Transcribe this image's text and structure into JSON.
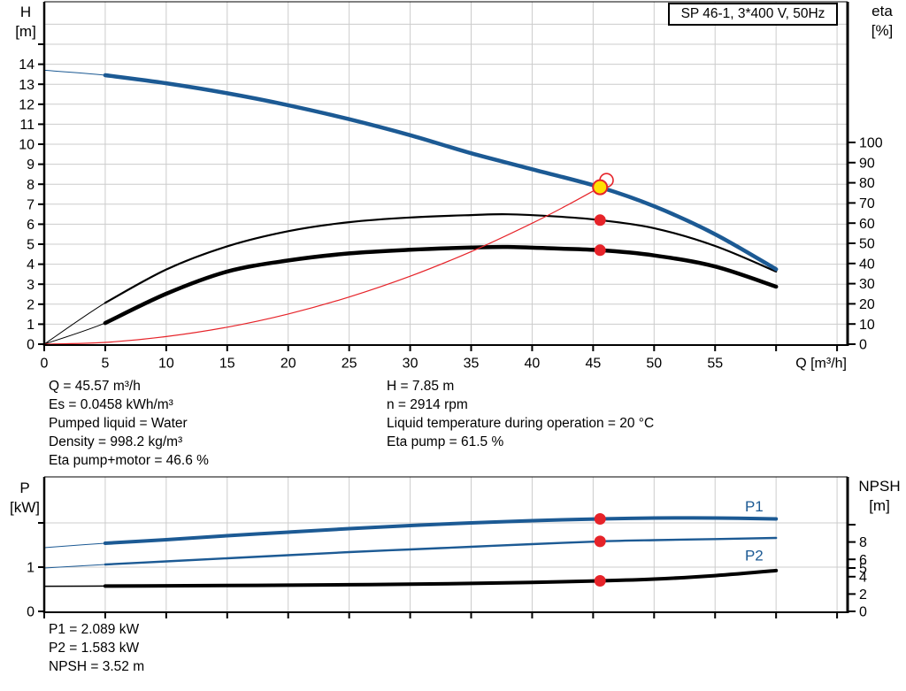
{
  "title_box": "SP 46-1, 3*400 V, 50Hz",
  "colors": {
    "blue": "#1c5a94",
    "black": "#000000",
    "red": "#e62329",
    "yellow": "#ffe000",
    "grid": "#cccccc",
    "axis": "#000000",
    "background": "#ffffff"
  },
  "info": {
    "left": [
      "Q = 45.57 m³/h",
      "Es = 0.0458 kWh/m³",
      "Pumped liquid = Water",
      "Density = 998.2 kg/m³",
      "Eta pump+motor = 46.6 %"
    ],
    "right": [
      "H = 7.85 m",
      "n = 2914 rpm",
      "Liquid temperature during operation = 20 °C",
      "Eta pump = 61.5 %"
    ],
    "bottom": [
      "P1 = 2.089 kW",
      "P2 = 1.583 kW",
      "NPSH = 3.52 m"
    ]
  },
  "chart_data": [
    {
      "type": "line",
      "title": "SP 46-1, 3*400 V, 50Hz",
      "x": {
        "label": "Q [m³/h]",
        "min": 0,
        "max": 65.9,
        "ticks": [
          0,
          5,
          10,
          15,
          20,
          25,
          30,
          35,
          40,
          45,
          50,
          55,
          60,
          65
        ],
        "labeled_ticks": [
          0,
          5,
          10,
          15,
          20,
          25,
          30,
          35,
          40,
          45,
          50,
          55
        ],
        "gridlines": [
          5,
          10,
          15,
          20,
          25,
          30,
          35,
          40,
          45,
          50,
          55,
          60,
          65
        ]
      },
      "y_left": {
        "label": [
          "H",
          "[m]"
        ],
        "min": 0,
        "max": 17.1,
        "ticks": [
          0,
          1,
          2,
          3,
          4,
          5,
          6,
          7,
          8,
          9,
          10,
          11,
          12,
          13,
          14,
          15
        ],
        "labeled_ticks": [
          0,
          1,
          2,
          3,
          4,
          5,
          6,
          7,
          8,
          9,
          10,
          11,
          12,
          13,
          14
        ],
        "gridlines": [
          1,
          2,
          3,
          4,
          5,
          6,
          7,
          8,
          9,
          10,
          11,
          12,
          13,
          14,
          15,
          16
        ]
      },
      "y_right": {
        "label": [
          "eta",
          "[%]"
        ],
        "min": 0,
        "max": 100,
        "ticks": [
          0,
          10,
          20,
          30,
          40,
          50,
          60,
          70,
          80,
          90,
          100
        ],
        "labeled_ticks": [
          0,
          10,
          20,
          30,
          40,
          50,
          60,
          70,
          80,
          90,
          100
        ],
        "gridlines": []
      },
      "series": [
        {
          "id": "eta-pump-curve",
          "name": "Eta pump",
          "axis": "right",
          "color": "black",
          "width": 2.2,
          "thin_until": 5,
          "thin_width": 1,
          "points": [
            [
              0,
              0
            ],
            [
              5,
              20.5
            ],
            [
              10,
              37
            ],
            [
              15,
              48.5
            ],
            [
              20,
              56
            ],
            [
              25,
              60.5
            ],
            [
              30,
              62.8
            ],
            [
              35,
              64
            ],
            [
              38,
              64.4
            ],
            [
              42,
              63.3
            ],
            [
              45.57,
              61.5
            ],
            [
              50,
              57.5
            ],
            [
              55,
              48.7
            ],
            [
              60,
              36
            ]
          ]
        },
        {
          "id": "eta-pump-motor-curve",
          "name": "Eta pump+motor",
          "axis": "right",
          "color": "black",
          "width": 4.5,
          "thin_until": 5,
          "thin_width": 1,
          "points": [
            [
              0,
              0
            ],
            [
              5,
              10.5
            ],
            [
              10,
              25
            ],
            [
              15,
              36
            ],
            [
              20,
              41.5
            ],
            [
              25,
              45
            ],
            [
              30,
              46.8
            ],
            [
              35,
              47.9
            ],
            [
              38,
              48.2
            ],
            [
              42,
              47.4
            ],
            [
              45.57,
              46.6
            ],
            [
              50,
              44
            ],
            [
              55,
              38.5
            ],
            [
              60,
              28.5
            ]
          ]
        },
        {
          "id": "system-curve",
          "name": "System curve",
          "axis": "left",
          "color": "red",
          "width": 1.2,
          "points": [
            [
              0,
              0
            ],
            [
              5,
              0.09
            ],
            [
              10,
              0.38
            ],
            [
              15,
              0.85
            ],
            [
              20,
              1.51
            ],
            [
              25,
              2.36
            ],
            [
              30,
              3.4
            ],
            [
              35,
              4.63
            ],
            [
              40,
              6.05
            ],
            [
              43,
              6.99
            ],
            [
              45.57,
              7.85
            ]
          ]
        },
        {
          "id": "head-curve",
          "name": "H curve",
          "axis": "left",
          "color": "blue",
          "width": 4.5,
          "thin_until": 4.5,
          "thin_width": 1,
          "points": [
            [
              0,
              13.7
            ],
            [
              5,
              13.45
            ],
            [
              10,
              13.05
            ],
            [
              15,
              12.55
            ],
            [
              20,
              11.95
            ],
            [
              25,
              11.25
            ],
            [
              30,
              10.45
            ],
            [
              35,
              9.55
            ],
            [
              40,
              8.75
            ],
            [
              45.57,
              7.85
            ],
            [
              50,
              6.9
            ],
            [
              55,
              5.5
            ],
            [
              60,
              3.75
            ]
          ]
        }
      ],
      "markers": [
        {
          "name": "requested-duty-point",
          "style": "open",
          "axis": "left",
          "q": 46.1,
          "v": 8.2
        },
        {
          "name": "duty-point",
          "style": "duty",
          "axis": "left",
          "q": 45.57,
          "v": 7.85
        },
        {
          "name": "eta-pump-point",
          "style": "dot",
          "axis": "right",
          "q": 45.57,
          "v": 61.5
        },
        {
          "name": "eta-pump-motor-point",
          "style": "dot",
          "axis": "right",
          "q": 45.57,
          "v": 46.6
        }
      ]
    },
    {
      "type": "line",
      "title": "",
      "x": {
        "label": "",
        "min": 0,
        "max": 65.9,
        "ticks": [
          0,
          5,
          10,
          15,
          20,
          25,
          30,
          35,
          40,
          45,
          50,
          55,
          60,
          65
        ],
        "labeled_ticks": [],
        "gridlines": [
          5,
          10,
          15,
          20,
          25,
          30,
          35,
          40,
          45,
          50,
          55,
          60,
          65
        ]
      },
      "y_left": {
        "label": [
          "P",
          "[kW]"
        ],
        "min": 0,
        "max": 3.04,
        "ticks": [
          0,
          1,
          2
        ],
        "labeled_ticks": [
          0,
          1
        ],
        "gridlines": [
          1,
          2
        ]
      },
      "y_right": {
        "label": [
          "NPSH",
          "[m]"
        ],
        "min": 0,
        "max": 15.5,
        "ticks": [
          0,
          2,
          4,
          5,
          6,
          8,
          10
        ],
        "labeled_ticks": [
          0,
          2,
          4,
          5,
          6,
          8
        ],
        "gridlines": []
      },
      "series": [
        {
          "id": "npsh-curve",
          "name": "NPSH",
          "axis": "right",
          "color": "black",
          "width": 4,
          "thin_until": 5,
          "thin_width": 1.5,
          "points": [
            [
              0,
              2.9
            ],
            [
              5,
              2.92
            ],
            [
              10,
              2.95
            ],
            [
              15,
              2.98
            ],
            [
              20,
              3.02
            ],
            [
              25,
              3.07
            ],
            [
              30,
              3.13
            ],
            [
              35,
              3.22
            ],
            [
              40,
              3.35
            ],
            [
              45.57,
              3.52
            ],
            [
              50,
              3.72
            ],
            [
              55,
              4.12
            ],
            [
              60,
              4.7
            ]
          ]
        },
        {
          "id": "p2-curve",
          "name": "P2",
          "label": "P2",
          "label_at": [
            58.2,
            1.27
          ],
          "axis": "left",
          "color": "blue",
          "width": 2.4,
          "thin_until": 5,
          "thin_width": 1,
          "points": [
            [
              0,
              0.98
            ],
            [
              5,
              1.06
            ],
            [
              10,
              1.13
            ],
            [
              15,
              1.2
            ],
            [
              20,
              1.27
            ],
            [
              25,
              1.34
            ],
            [
              30,
              1.4
            ],
            [
              35,
              1.46
            ],
            [
              40,
              1.52
            ],
            [
              45.57,
              1.583
            ],
            [
              50,
              1.61
            ],
            [
              55,
              1.635
            ],
            [
              60,
              1.66
            ]
          ]
        },
        {
          "id": "p1-curve",
          "name": "P1",
          "label": "P1",
          "label_at": [
            58.2,
            2.38
          ],
          "axis": "left",
          "color": "blue",
          "width": 4,
          "thin_until": 5,
          "thin_width": 1,
          "points": [
            [
              0,
              1.44
            ],
            [
              5,
              1.54
            ],
            [
              10,
              1.62
            ],
            [
              15,
              1.71
            ],
            [
              20,
              1.79
            ],
            [
              25,
              1.87
            ],
            [
              30,
              1.94
            ],
            [
              35,
              2.0
            ],
            [
              40,
              2.05
            ],
            [
              45.57,
              2.089
            ],
            [
              50,
              2.11
            ],
            [
              55,
              2.11
            ],
            [
              60,
              2.09
            ]
          ]
        }
      ],
      "markers": [
        {
          "name": "p1-point",
          "style": "dot",
          "axis": "left",
          "q": 45.57,
          "v": 2.089
        },
        {
          "name": "p2-point",
          "style": "dot",
          "axis": "left",
          "q": 45.57,
          "v": 1.583
        },
        {
          "name": "npsh-point",
          "style": "dot",
          "axis": "right",
          "q": 45.57,
          "v": 3.52
        }
      ]
    }
  ]
}
